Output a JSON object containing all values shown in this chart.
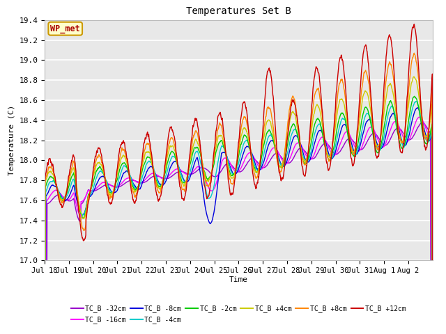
{
  "title": "Temperatures Set B",
  "xlabel": "Time",
  "ylabel": "Temperature (C)",
  "ylim": [
    17.0,
    19.4
  ],
  "yticks": [
    17.0,
    17.2,
    17.4,
    17.6,
    17.8,
    18.0,
    18.2,
    18.4,
    18.6,
    18.8,
    19.0,
    19.2,
    19.4
  ],
  "series": [
    {
      "label": "TC_B -32cm",
      "color": "#9900cc",
      "lw": 1.0
    },
    {
      "label": "TC_B -16cm",
      "color": "#ff00ff",
      "lw": 1.0
    },
    {
      "label": "TC_B -8cm",
      "color": "#0000dd",
      "lw": 1.0
    },
    {
      "label": "TC_B -4cm",
      "color": "#00cccc",
      "lw": 1.0
    },
    {
      "label": "TC_B -2cm",
      "color": "#00cc00",
      "lw": 1.0
    },
    {
      "label": "TC_B +4cm",
      "color": "#cccc00",
      "lw": 1.0
    },
    {
      "label": "TC_B +8cm",
      "color": "#ff8800",
      "lw": 1.0
    },
    {
      "label": "TC_B +12cm",
      "color": "#cc0000",
      "lw": 1.0
    }
  ],
  "wp_met_label": "WP_met",
  "wp_met_color": "#aa0000",
  "wp_met_bg": "#ffffcc",
  "wp_met_border": "#cc9900",
  "bg_color": "#e8e8e8",
  "grid_color": "#ffffff",
  "x_labels": [
    "Jul 18",
    "Jul 19",
    "Jul 20",
    "Jul 21",
    "Jul 22",
    "Jul 23",
    "Jul 24",
    "Jul 25",
    "Jul 26",
    "Jul 27",
    "Jul 28",
    "Jul 29",
    "Jul 30",
    "Jul 31",
    "Aug 1",
    "Aug 2"
  ]
}
